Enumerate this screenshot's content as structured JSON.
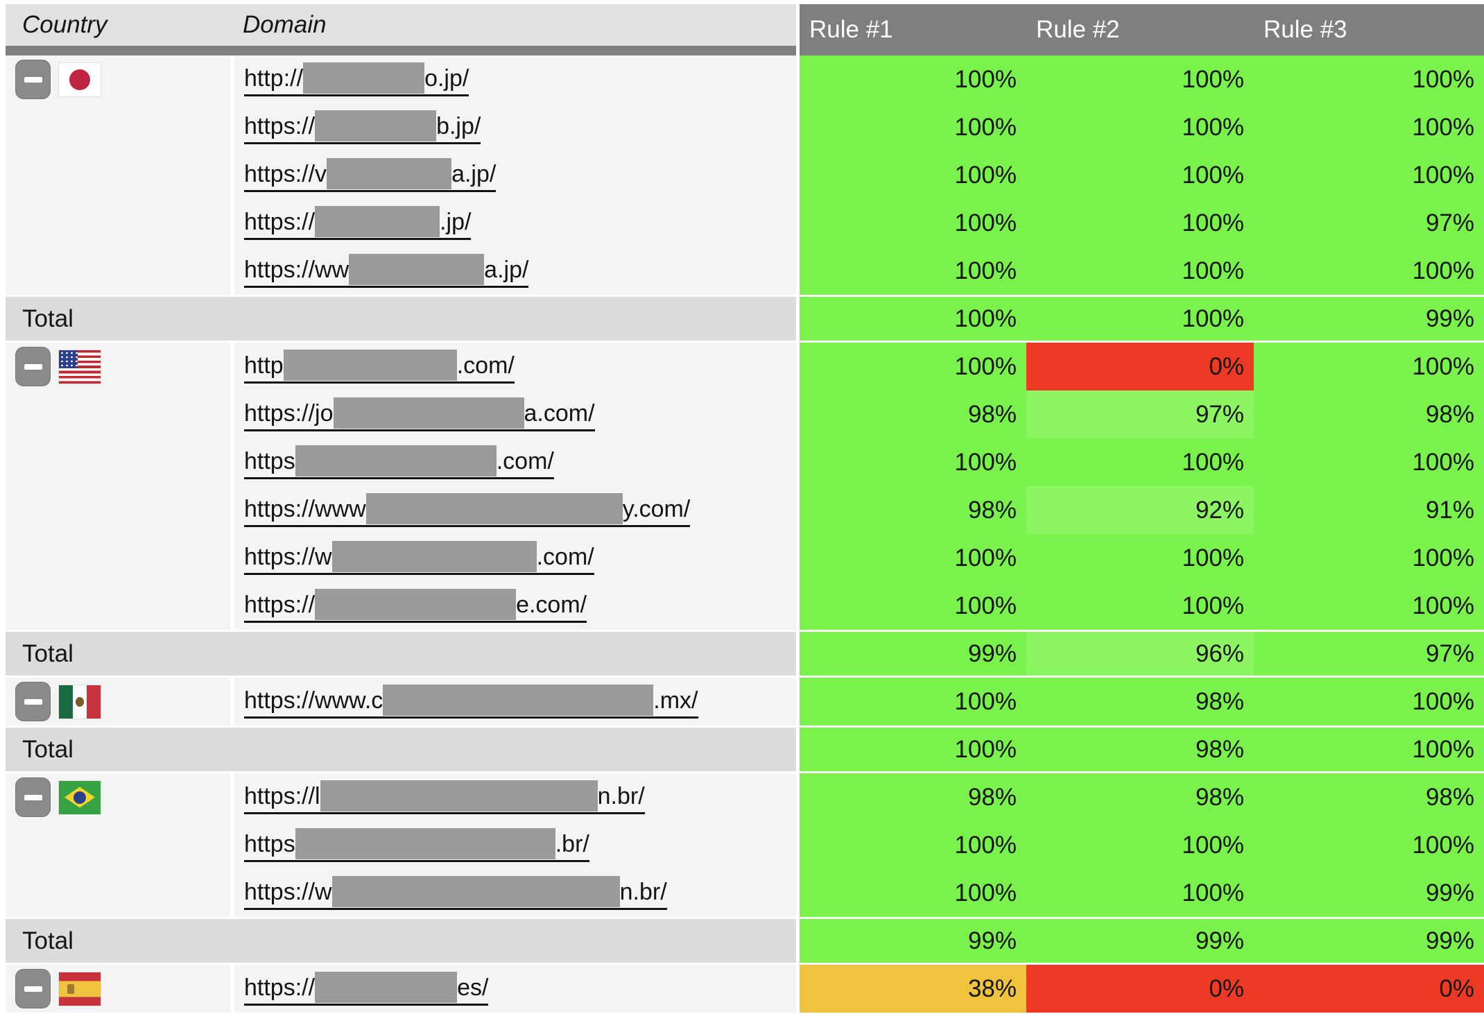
{
  "header": {
    "country_label": "Country",
    "domain_label": "Domain",
    "rule_labels": [
      "Rule #1",
      "Rule #2",
      "Rule #3"
    ]
  },
  "total_label": "Total",
  "colors": {
    "green": "#79f24c",
    "green_light": "#8cf562",
    "red": "#ee3a25",
    "orange": "#f0c33e",
    "header_dark": "#7f7f7f",
    "header_light": "#e1e1e1",
    "total_row_bg": "#dcdcdc",
    "row_bg": "#f4f4f4",
    "redaction_gray": "#9a9a9a"
  },
  "icons": [
    "minus-icon",
    "japan-flag",
    "usa-flag",
    "mexico-flag",
    "brazil-flag",
    "spain-flag"
  ],
  "rows": [
    {
      "kind": "domain",
      "group": "japan",
      "flag": "jp",
      "flag_name": "japan-flag",
      "collapse": true,
      "prefix": "http://",
      "block": 175,
      "suffix": "o.jp/",
      "values": [
        {
          "v": "100%",
          "bg": "green"
        },
        {
          "v": "100%",
          "bg": "green"
        },
        {
          "v": "100%",
          "bg": "green"
        }
      ]
    },
    {
      "kind": "domain",
      "group": "japan",
      "prefix": "https://",
      "block": 175,
      "suffix": "b.jp/",
      "values": [
        {
          "v": "100%",
          "bg": "green"
        },
        {
          "v": "100%",
          "bg": "green"
        },
        {
          "v": "100%",
          "bg": "green"
        }
      ]
    },
    {
      "kind": "domain",
      "group": "japan",
      "prefix": "https://v",
      "block": 180,
      "suffix": "a.jp/",
      "values": [
        {
          "v": "100%",
          "bg": "green"
        },
        {
          "v": "100%",
          "bg": "green"
        },
        {
          "v": "100%",
          "bg": "green"
        }
      ]
    },
    {
      "kind": "domain",
      "group": "japan",
      "prefix": "https://",
      "block": 180,
      "suffix": ".jp/",
      "values": [
        {
          "v": "100%",
          "bg": "green"
        },
        {
          "v": "100%",
          "bg": "green"
        },
        {
          "v": "97%",
          "bg": "green"
        }
      ]
    },
    {
      "kind": "domain",
      "group": "japan",
      "prefix": "https://ww",
      "block": 195,
      "suffix": "a.jp/",
      "values": [
        {
          "v": "100%",
          "bg": "green"
        },
        {
          "v": "100%",
          "bg": "green"
        },
        {
          "v": "100%",
          "bg": "green"
        }
      ]
    },
    {
      "kind": "total",
      "group": "japan",
      "values": [
        {
          "v": "100%",
          "bg": "green"
        },
        {
          "v": "100%",
          "bg": "green"
        },
        {
          "v": "99%",
          "bg": "green"
        }
      ]
    },
    {
      "kind": "domain",
      "group": "usa",
      "flag": "us",
      "flag_name": "usa-flag",
      "collapse": true,
      "prefix": "http",
      "block": 250,
      "suffix": ".com/",
      "values": [
        {
          "v": "100%",
          "bg": "green"
        },
        {
          "v": "0%",
          "bg": "red"
        },
        {
          "v": "100%",
          "bg": "green"
        }
      ]
    },
    {
      "kind": "domain",
      "group": "usa",
      "prefix": "https://jo",
      "block": 275,
      "suffix": "a.com/",
      "values": [
        {
          "v": "98%",
          "bg": "green"
        },
        {
          "v": "97%",
          "bg": "green-light"
        },
        {
          "v": "98%",
          "bg": "green"
        }
      ]
    },
    {
      "kind": "domain",
      "group": "usa",
      "prefix": "https",
      "block": 290,
      "suffix": ".com/",
      "values": [
        {
          "v": "100%",
          "bg": "green"
        },
        {
          "v": "100%",
          "bg": "green"
        },
        {
          "v": "100%",
          "bg": "green"
        }
      ]
    },
    {
      "kind": "domain",
      "group": "usa",
      "prefix": "https://www",
      "block": 370,
      "suffix": "y.com/",
      "values": [
        {
          "v": "98%",
          "bg": "green"
        },
        {
          "v": "92%",
          "bg": "green-light"
        },
        {
          "v": "91%",
          "bg": "green"
        }
      ]
    },
    {
      "kind": "domain",
      "group": "usa",
      "prefix": "https://w",
      "block": 295,
      "suffix": ".com/",
      "values": [
        {
          "v": "100%",
          "bg": "green"
        },
        {
          "v": "100%",
          "bg": "green"
        },
        {
          "v": "100%",
          "bg": "green"
        }
      ]
    },
    {
      "kind": "domain",
      "group": "usa",
      "prefix": "https://",
      "block": 290,
      "suffix": "e.com/",
      "values": [
        {
          "v": "100%",
          "bg": "green"
        },
        {
          "v": "100%",
          "bg": "green"
        },
        {
          "v": "100%",
          "bg": "green"
        }
      ]
    },
    {
      "kind": "total",
      "group": "usa",
      "values": [
        {
          "v": "99%",
          "bg": "green"
        },
        {
          "v": "96%",
          "bg": "green-light"
        },
        {
          "v": "97%",
          "bg": "green"
        }
      ]
    },
    {
      "kind": "domain",
      "group": "mexico",
      "flag": "mx",
      "flag_name": "mexico-flag",
      "collapse": true,
      "prefix": "https://www.c",
      "block": 390,
      "suffix": ".mx/",
      "values": [
        {
          "v": "100%",
          "bg": "green"
        },
        {
          "v": "98%",
          "bg": "green"
        },
        {
          "v": "100%",
          "bg": "green"
        }
      ]
    },
    {
      "kind": "total",
      "group": "mexico",
      "values": [
        {
          "v": "100%",
          "bg": "green"
        },
        {
          "v": "98%",
          "bg": "green"
        },
        {
          "v": "100%",
          "bg": "green"
        }
      ]
    },
    {
      "kind": "domain",
      "group": "brazil",
      "flag": "br",
      "flag_name": "brazil-flag",
      "collapse": true,
      "prefix": "https://l",
      "block": 400,
      "suffix": "n.br/",
      "values": [
        {
          "v": "98%",
          "bg": "green"
        },
        {
          "v": "98%",
          "bg": "green"
        },
        {
          "v": "98%",
          "bg": "green"
        }
      ]
    },
    {
      "kind": "domain",
      "group": "brazil",
      "prefix": "https",
      "block": 375,
      "suffix": ".br/",
      "values": [
        {
          "v": "100%",
          "bg": "green"
        },
        {
          "v": "100%",
          "bg": "green"
        },
        {
          "v": "100%",
          "bg": "green"
        }
      ]
    },
    {
      "kind": "domain",
      "group": "brazil",
      "prefix": "https://w",
      "block": 415,
      "suffix": "n.br/",
      "values": [
        {
          "v": "100%",
          "bg": "green"
        },
        {
          "v": "100%",
          "bg": "green"
        },
        {
          "v": "99%",
          "bg": "green"
        }
      ]
    },
    {
      "kind": "total",
      "group": "brazil",
      "values": [
        {
          "v": "99%",
          "bg": "green"
        },
        {
          "v": "99%",
          "bg": "green"
        },
        {
          "v": "99%",
          "bg": "green"
        }
      ]
    },
    {
      "kind": "domain",
      "group": "spain",
      "flag": "es",
      "flag_name": "spain-flag",
      "collapse": true,
      "prefix": "https://",
      "block": 205,
      "suffix": "es/",
      "values": [
        {
          "v": "38%",
          "bg": "orange"
        },
        {
          "v": "0%",
          "bg": "red"
        },
        {
          "v": "0%",
          "bg": "red"
        }
      ]
    }
  ]
}
